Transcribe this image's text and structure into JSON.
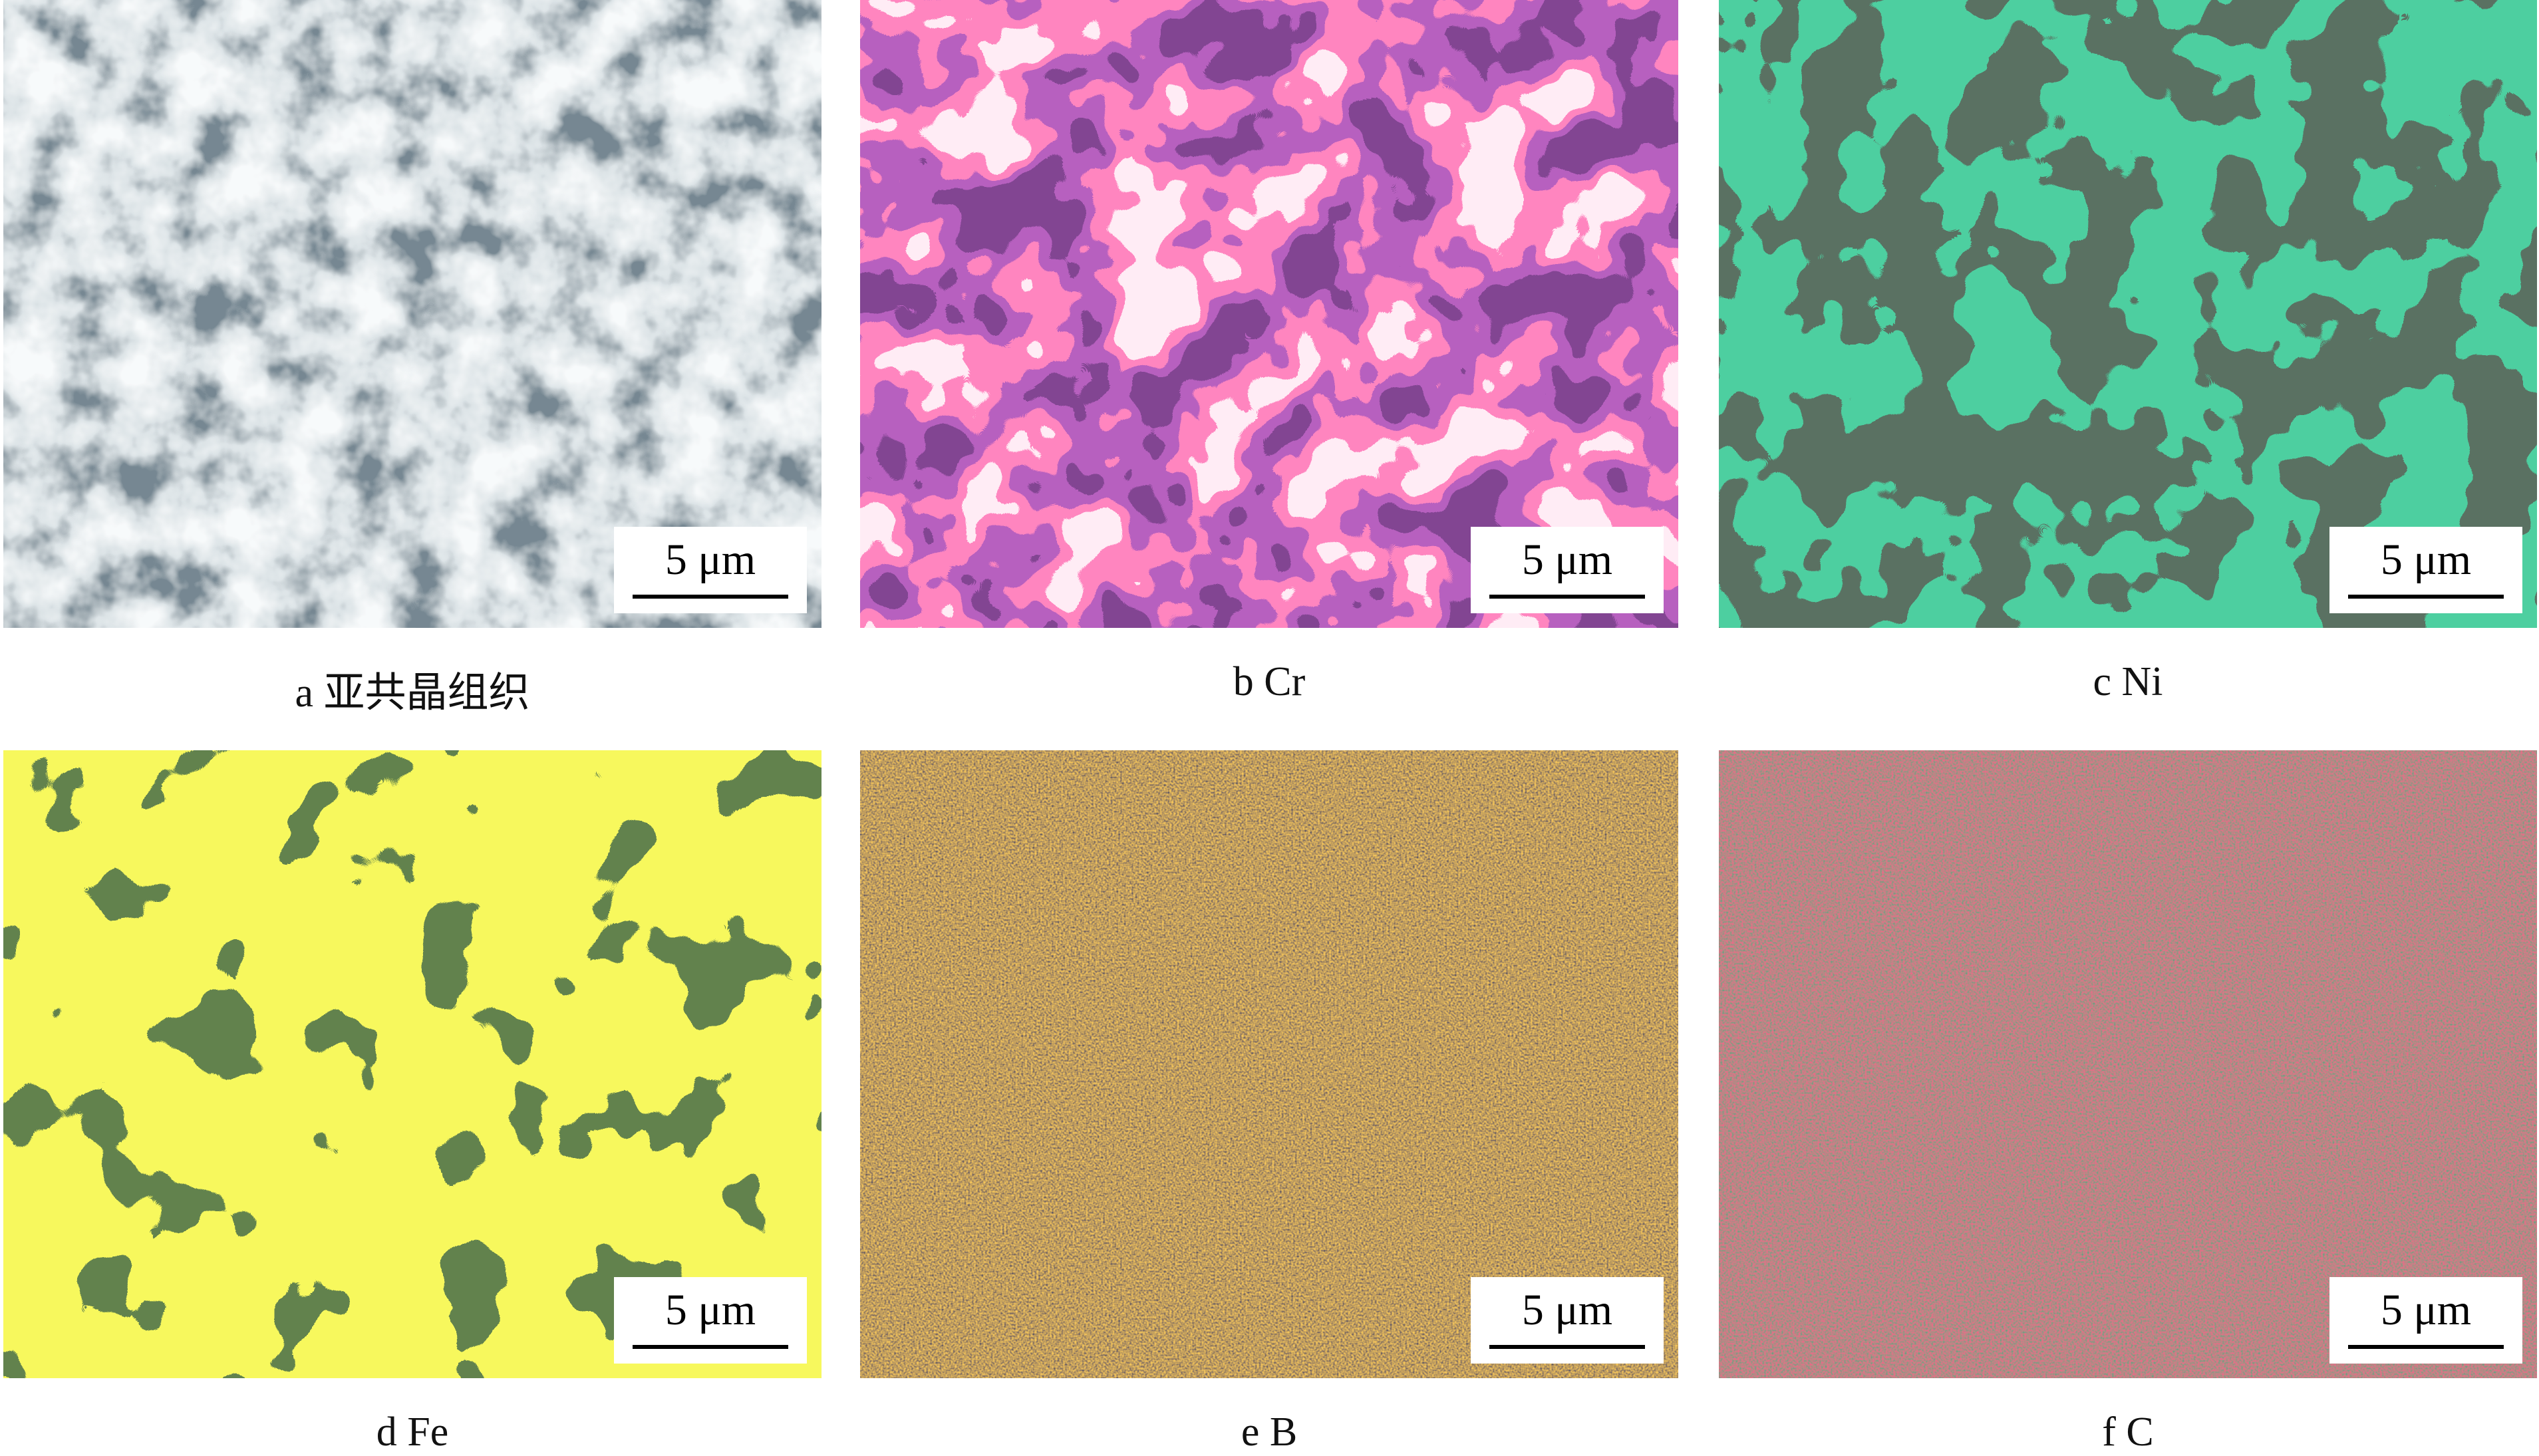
{
  "figure": {
    "panels": [
      {
        "id": "a",
        "caption": "a  亚共晶组织",
        "scale": "5 μm",
        "colors": [
          "#2f3f4a",
          "#b8c6cc",
          "#eef3f5"
        ]
      },
      {
        "id": "b",
        "caption": "b  Cr",
        "scale": "5 μm",
        "colors": [
          "#3a0f4a",
          "#7a1e86",
          "#ff3d86",
          "#ffd6e8"
        ]
      },
      {
        "id": "c",
        "caption": "c  Ni",
        "scale": "5 μm",
        "colors": [
          "#1a2a20",
          "#13a05a"
        ]
      },
      {
        "id": "d",
        "caption": "d  Fe",
        "scale": "5 μm",
        "colors": [
          "#1f3a14",
          "#eef11c"
        ]
      },
      {
        "id": "e",
        "caption": "e  B",
        "scale": "5 μm",
        "colors": [
          "#141320",
          "#ff9d1a"
        ]
      },
      {
        "id": "f",
        "caption": "f  C",
        "scale": "5 μm",
        "colors": [
          "#1d5a3a",
          "#e0203f"
        ]
      }
    ]
  }
}
